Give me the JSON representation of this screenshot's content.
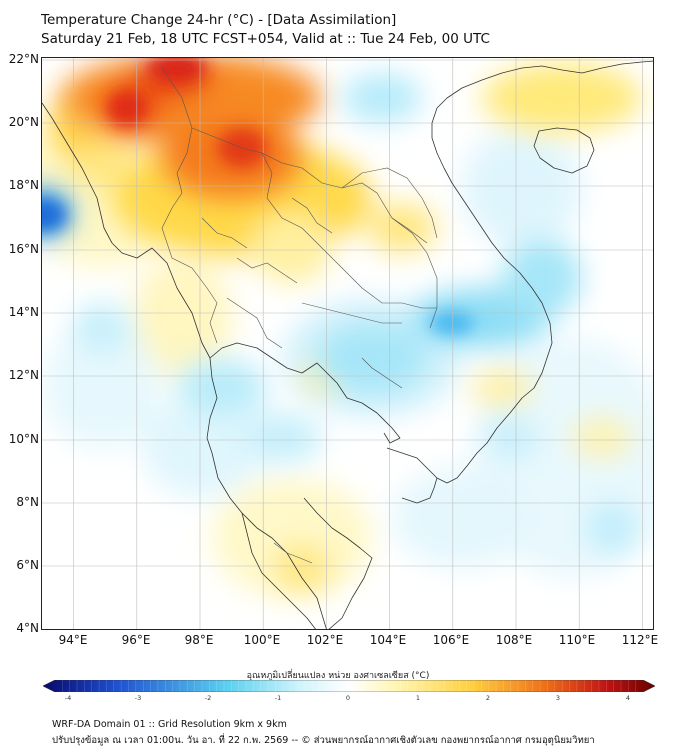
{
  "header": {
    "title_line1": "Temperature Change 24-hr (°C) - [Data Assimilation]",
    "title_line2": "Saturday 21 Feb, 18 UTC FCST+054, Valid at :: Tue 24 Feb, 00 UTC"
  },
  "map": {
    "y_axis_labels": [
      "22°N",
      "20°N",
      "18°N",
      "16°N",
      "14°N",
      "12°N",
      "10°N",
      "8°N",
      "6°N",
      "4°N"
    ],
    "x_axis_labels": [
      "94°E",
      "96°E",
      "98°E",
      "100°E",
      "102°E",
      "104°E",
      "106°E",
      "108°E",
      "110°E",
      "112°E"
    ],
    "lat_range": [
      4,
      22.2
    ],
    "lon_range": [
      93,
      112.4
    ]
  },
  "colorbar": {
    "title": "อุณหภูมิเปลี่ยนแปลง หน่วย องศาเซลเซียส (°C)",
    "ticks": [
      "-4",
      "-3",
      "-2",
      "-1",
      "0",
      "1",
      "2",
      "3",
      "4"
    ],
    "range": [
      -4,
      4
    ],
    "colors": [
      "#08086b",
      "#1e50d0",
      "#5ad0f0",
      "#d0f4fc",
      "#ffffff",
      "#fff5b0",
      "#ffd040",
      "#f07018",
      "#c01414",
      "#6a0000"
    ]
  },
  "footer": {
    "line1": "WRF-DA Domain 01 :: Grid Resolution 9km x 9km",
    "line2": "ปรับปรุงข้อมูล ณ เวลา 01:00น. วัน อา. ที่ 22 ก.พ. 2569 -- © ส่วนพยากรณ์อากาศเชิงตัวเลข กองพยากรณ์อากาศ กรมอุตุนิยมวิทยา"
  }
}
